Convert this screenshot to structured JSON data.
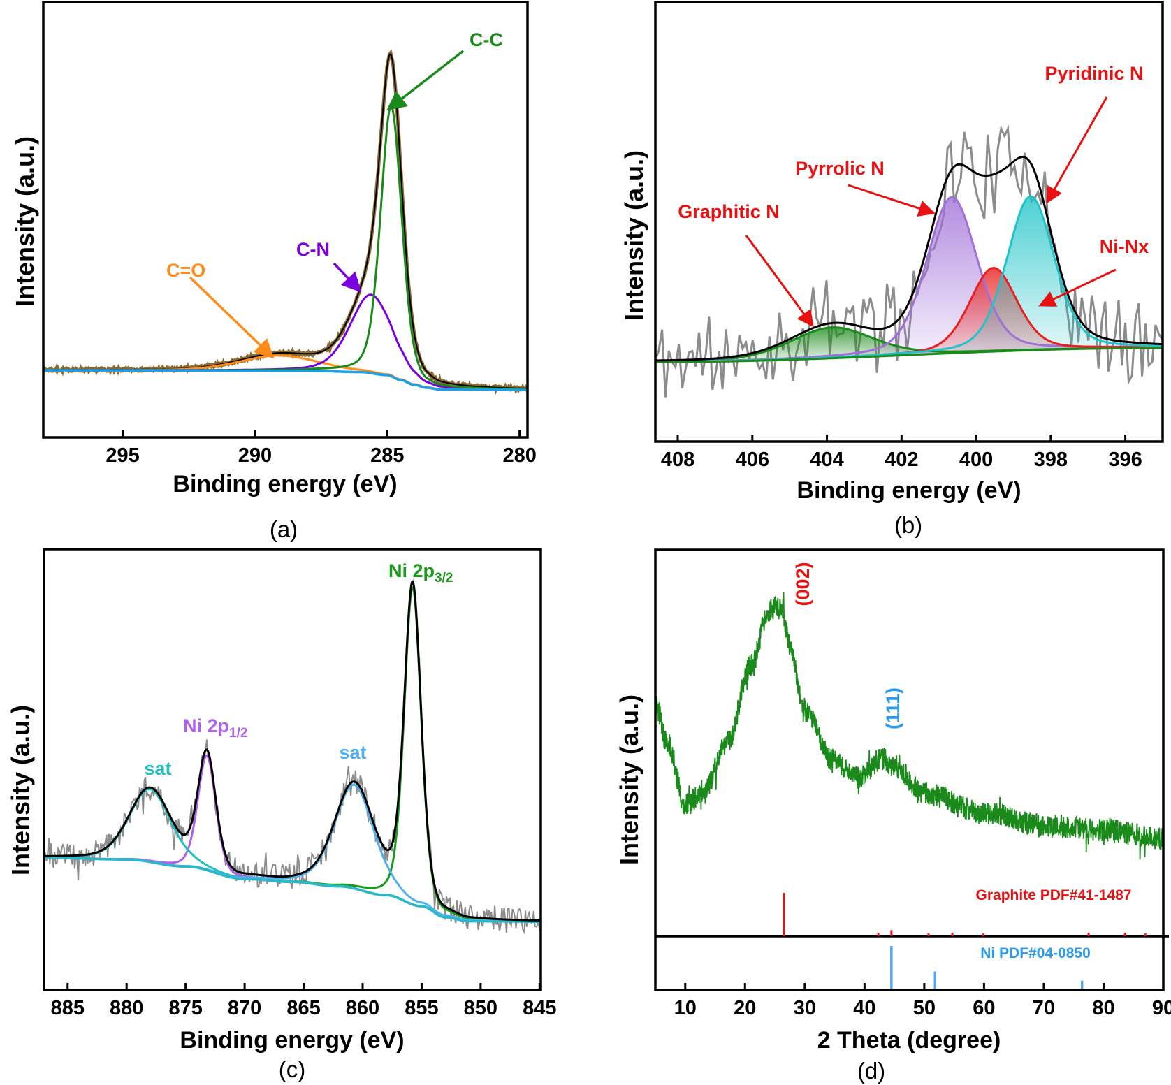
{
  "chart_data": [
    {
      "type": "line",
      "panel_label": "(a)",
      "xlabel": "Binding energy (eV)",
      "ylabel": "Intensity (a.u.)",
      "xlim": [
        298,
        279.7
      ],
      "xticks": [
        295,
        290,
        285,
        280
      ],
      "ylim": [
        0,
        1
      ],
      "grid": false,
      "background": {
        "color": "#1aa0e6",
        "points": [
          [
            298,
            0.154
          ],
          [
            288,
            0.153
          ],
          [
            286,
            0.15
          ],
          [
            285,
            0.143
          ],
          [
            284.5,
            0.132
          ],
          [
            284,
            0.121
          ],
          [
            283.5,
            0.114
          ],
          [
            283,
            0.11
          ],
          [
            279.7,
            0.109
          ]
        ]
      },
      "components": [
        {
          "label": "C-C",
          "center": 284.85,
          "height": 0.62,
          "fwhm": 0.95,
          "color": "#1a8a1a"
        },
        {
          "label": "C-N",
          "center": 285.6,
          "height": 0.18,
          "fwhm": 1.9,
          "color": "#7a00e0"
        },
        {
          "label": "C=O",
          "center": 289.1,
          "height": 0.035,
          "fwhm": 3.5,
          "color": "#ff8c1a"
        }
      ],
      "envelope_color": "#000000",
      "measured_color": "#8a6a30"
    },
    {
      "type": "line",
      "panel_label": "(b)",
      "xlabel": "Binding energy (eV)",
      "ylabel": "Intensity (a.u.)",
      "xlim": [
        408.6,
        395.0
      ],
      "xticks": [
        408,
        406,
        404,
        402,
        400,
        398,
        396
      ],
      "ylim": [
        0,
        1
      ],
      "grid": false,
      "background": {
        "color": "#1a8a1a",
        "points": [
          [
            408.6,
            0.181
          ],
          [
            395.0,
            0.213
          ]
        ]
      },
      "components": [
        {
          "label": "Graphitic N",
          "center": 403.87,
          "height": 0.07,
          "fwhm": 2.6,
          "color": "#1a8a1a"
        },
        {
          "label": "Pyrrolic N",
          "center": 400.65,
          "height": 0.355,
          "fwhm": 1.6,
          "color": "#a070d8"
        },
        {
          "label": "Ni-Nx",
          "center": 399.54,
          "height": 0.19,
          "fwhm": 1.5,
          "color": "#e82020"
        },
        {
          "label": "Pyridinic N",
          "center": 398.54,
          "height": 0.35,
          "fwhm": 1.5,
          "color": "#20c4c8"
        }
      ],
      "envelope_color": "#000000",
      "measured_color": "#8c8c8c",
      "annotation_color": "#e81010"
    },
    {
      "type": "line",
      "panel_label": "(c)",
      "xlabel": "Binding energy (eV)",
      "ylabel": "Intensity (a.u.)",
      "xlim": [
        887.0,
        844.9
      ],
      "xticks": [
        885,
        880,
        875,
        870,
        865,
        860,
        855,
        850,
        845
      ],
      "ylim": [
        0,
        1
      ],
      "grid": false,
      "background": {
        "color": "#2ab8c8",
        "points": [
          [
            887,
            0.3
          ],
          [
            880,
            0.296
          ],
          [
            875,
            0.28
          ],
          [
            870,
            0.252
          ],
          [
            866,
            0.245
          ],
          [
            862,
            0.235
          ],
          [
            858,
            0.215
          ],
          [
            855,
            0.19
          ],
          [
            853,
            0.165
          ],
          [
            851,
            0.156
          ],
          [
            844.9,
            0.155
          ]
        ]
      },
      "components": [
        {
          "label_main": "Ni 2p",
          "label_sub": "3/2",
          "center": 855.76,
          "height": 0.72,
          "fwhm": 1.7,
          "color": "#1a9a1a"
        },
        {
          "label_main": "Ni 2p",
          "label_sub": "1/2",
          "center": 873.2,
          "height": 0.26,
          "fwhm": 1.8,
          "color": "#b060f0"
        },
        {
          "label": "sat",
          "center": 878.0,
          "height": 0.165,
          "fwhm": 4.2,
          "color": "#20c0c0"
        },
        {
          "label": "sat",
          "center": 860.7,
          "height": 0.235,
          "fwhm": 4.0,
          "color": "#50b0f0"
        }
      ],
      "envelope_color": "#000000",
      "measured_color": "#8c8c8c"
    },
    {
      "type": "line",
      "panel_label": "(d)",
      "xlabel": "2 Theta (degree)",
      "ylabel": "Intensity (a.u.)",
      "xlim": [
        5,
        90
      ],
      "xticks": [
        10,
        20,
        30,
        40,
        50,
        60,
        70,
        80,
        90
      ],
      "ylim": [
        0,
        1
      ],
      "grid": false,
      "pattern": {
        "color": "#1a8a1a",
        "points": [
          [
            5,
            0.6
          ],
          [
            7,
            0.5
          ],
          [
            10,
            0.34
          ],
          [
            13,
            0.37
          ],
          [
            17,
            0.5
          ],
          [
            21,
            0.7
          ],
          [
            24,
            0.84
          ],
          [
            26,
            0.86
          ],
          [
            27.5,
            0.75
          ],
          [
            30,
            0.58
          ],
          [
            35,
            0.45
          ],
          [
            39,
            0.41
          ],
          [
            43,
            0.46
          ],
          [
            45,
            0.44
          ],
          [
            50,
            0.37
          ],
          [
            60,
            0.32
          ],
          [
            70,
            0.285
          ],
          [
            80,
            0.275
          ],
          [
            90,
            0.254
          ]
        ]
      },
      "peak_labels": [
        {
          "label": "(002)",
          "color": "#e81010"
        },
        {
          "label": "(111)",
          "color": "#2a9af0"
        }
      ],
      "references": [
        {
          "label": "Graphite PDF#41-1487",
          "color": "#e81010",
          "lines": [
            [
              26.5,
              100
            ],
            [
              42.3,
              8
            ],
            [
              44.5,
              14
            ],
            [
              50.7,
              6
            ],
            [
              54.7,
              8
            ],
            [
              59.9,
              6
            ],
            [
              77.5,
              8
            ],
            [
              83.6,
              8
            ],
            [
              87.0,
              6
            ]
          ]
        },
        {
          "label": "Ni PDF#04-0850",
          "color": "#50a8f0",
          "lines": [
            [
              44.5,
              100
            ],
            [
              51.8,
              42
            ],
            [
              76.4,
              21
            ]
          ]
        }
      ]
    }
  ]
}
